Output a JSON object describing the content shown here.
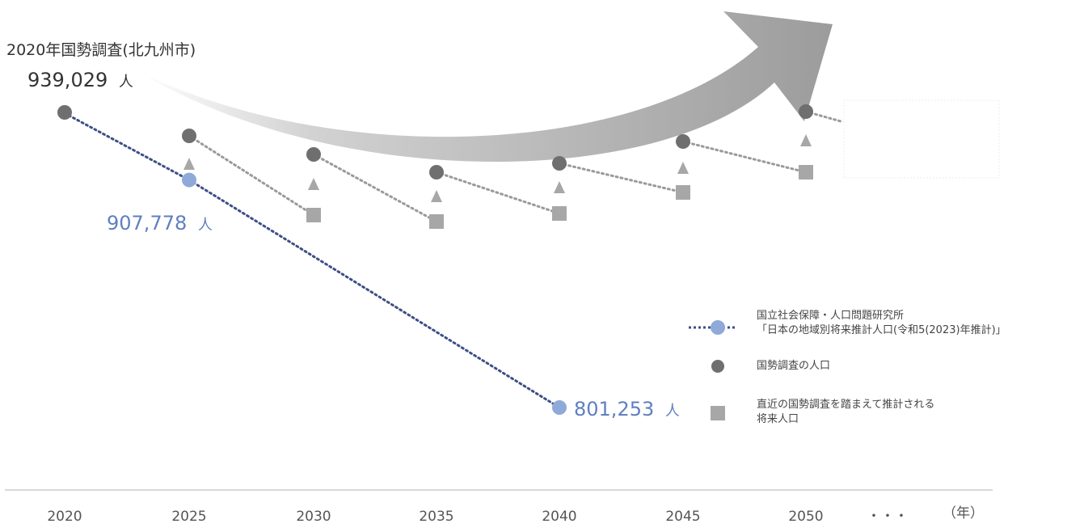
{
  "chart_data": {
    "type": "line",
    "xlabel": "",
    "ylabel": "",
    "categories": [
      "2020",
      "2025",
      "2030",
      "2035",
      "2040",
      "2045",
      "2050",
      "・・・"
    ],
    "x_unit": "（年）",
    "annotations": {
      "census_title": "2020年国勢調査(北九州市)",
      "census_value": "939,029",
      "projection_2025": "907,778",
      "projection_2040": "801,253",
      "unit": "人"
    },
    "series": [
      {
        "name": "国立社会保障・人口問題研究所「日本の地域別将来推計人口(令和5(2023)年推計)」",
        "color": "#8fa9d8",
        "line_color": "#3d4f86",
        "points": [
          {
            "x": "2020",
            "y": 939029
          },
          {
            "x": "2025",
            "y": 907778
          },
          {
            "x": "2040",
            "y": 801253
          }
        ]
      },
      {
        "name": "国勢調査の人口",
        "color": "#6f6f6f"
      },
      {
        "name": "直近の国勢調査を踏まえて推計される将来人口",
        "color": "#a7a7a7"
      }
    ],
    "legend_position": "right",
    "legend": [
      {
        "text_lines": [
          "国立社会保障・人口問題研究所",
          "「日本の地域別将来推計人口(令和5(2023)年推計)」"
        ]
      },
      {
        "text_lines": [
          "国勢調査の人口"
        ]
      },
      {
        "text_lines": [
          "直近の国勢調査を踏まえて推計される",
          "将来人口"
        ]
      }
    ]
  },
  "colors": {
    "census": "#6f6f6f",
    "projected": "#a7a7a7",
    "ipss_point": "#8fa9d8",
    "ipss_line": "#3d4f86",
    "arrow": "#a9a9a9",
    "triangle": "#a7a7a7",
    "axis": "#d9d9d9",
    "label_blue": "#5f7fc0",
    "text": "#333333"
  }
}
